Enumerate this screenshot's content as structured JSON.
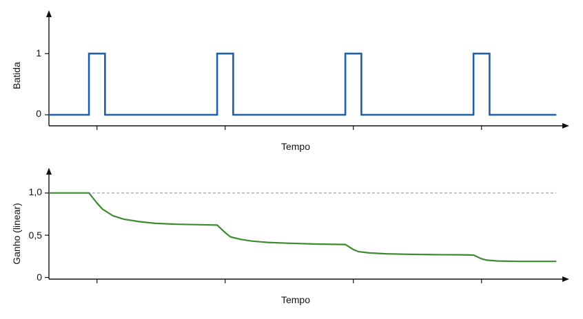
{
  "colors": {
    "beat": "#1f5fa8",
    "gain": "#3c8a2e",
    "reference": "#8c8cb0",
    "axis": "#111111"
  },
  "chart_data": [
    {
      "type": "line",
      "title": "",
      "xlabel": "Tempo",
      "ylabel": "Batida",
      "yticks": [
        {
          "value": 0,
          "label": "0"
        },
        {
          "value": 1,
          "label": "1"
        }
      ],
      "xlim": [
        0,
        10
      ],
      "ylim": [
        -0.18,
        1.65
      ],
      "xticks_unlabeled": [
        0.9,
        3.3,
        5.7,
        8.1
      ],
      "grid": false,
      "series": [
        {
          "x": [
            0,
            0.75,
            0.75,
            1.05,
            1.05,
            3.15,
            3.15,
            3.45,
            3.45,
            5.55,
            5.55,
            5.85,
            5.85,
            7.95,
            7.95,
            8.25,
            8.25,
            9.5
          ],
          "y": [
            0,
            0,
            1,
            1,
            0,
            0,
            1,
            1,
            0,
            0,
            1,
            1,
            0,
            0,
            1,
            1,
            0,
            0
          ]
        }
      ]
    },
    {
      "type": "line",
      "title": "",
      "xlabel": "Tempo",
      "ylabel": "Ganho (linear)",
      "yticks": [
        {
          "value": 0,
          "label": "0"
        },
        {
          "value": 0.5,
          "label": "0,5"
        },
        {
          "value": 1.0,
          "label": "1,0"
        }
      ],
      "xlim": [
        0,
        10
      ],
      "ylim": [
        -0.02,
        1.25
      ],
      "xticks_unlabeled": [
        0.9,
        3.3,
        5.7,
        8.1
      ],
      "reference_line": 1.0,
      "grid": false,
      "series": [
        {
          "x": [
            0,
            0.75,
            0.9,
            1.0,
            1.2,
            1.4,
            1.7,
            2.0,
            2.4,
            2.8,
            3.15,
            3.3,
            3.4,
            3.6,
            3.8,
            4.1,
            4.5,
            5.0,
            5.55,
            5.7,
            5.8,
            6.0,
            6.3,
            6.7,
            7.2,
            7.7,
            7.95,
            8.1,
            8.2,
            8.4,
            8.8,
            9.2,
            9.5
          ],
          "y": [
            1.0,
            1.0,
            0.88,
            0.81,
            0.73,
            0.69,
            0.66,
            0.64,
            0.63,
            0.625,
            0.62,
            0.53,
            0.48,
            0.45,
            0.43,
            0.415,
            0.405,
            0.395,
            0.39,
            0.33,
            0.305,
            0.29,
            0.28,
            0.275,
            0.27,
            0.268,
            0.265,
            0.22,
            0.205,
            0.195,
            0.19,
            0.19,
            0.19
          ]
        }
      ]
    }
  ]
}
